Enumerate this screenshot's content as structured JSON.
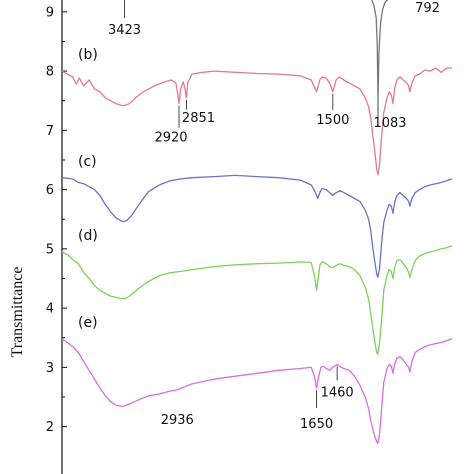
{
  "chart_data": {
    "type": "line",
    "title": "",
    "xlabel": "",
    "ylabel": "Transmittance",
    "ylim": [
      1.2,
      9.2
    ],
    "xlim": [
      4000,
      400
    ],
    "x_reversed": true,
    "y_ticks": [
      "2",
      "3",
      "4",
      "5",
      "6",
      "7",
      "8",
      "9"
    ],
    "grid": false,
    "series": [
      {
        "name": "",
        "panel_label": "",
        "color": "#777777",
        "x": [
          1200,
          1150,
          1120,
          1100,
          1090,
          1083,
          1075,
          1060,
          1040,
          1020,
          1000,
          980,
          960
        ],
        "y": [
          9.3,
          9.25,
          9.1,
          8.9,
          8.4,
          7.5,
          8.3,
          8.8,
          9.05,
          9.15,
          9.2,
          9.22,
          9.25
        ],
        "annotations": [
          {
            "text": "3423",
            "x": 3423,
            "y": 8.7
          },
          {
            "text": "792",
            "x": 792,
            "y": 9.1
          }
        ]
      },
      {
        "name": "",
        "panel_label": "(b)",
        "color": "#e07a8f",
        "x": [
          4000,
          3950,
          3900,
          3870,
          3840,
          3800,
          3750,
          3700,
          3650,
          3600,
          3550,
          3500,
          3450,
          3423,
          3380,
          3320,
          3250,
          3150,
          3050,
          2990,
          2950,
          2935,
          2920,
          2905,
          2880,
          2865,
          2851,
          2840,
          2800,
          2700,
          2600,
          2400,
          2200,
          2000,
          1800,
          1700,
          1650,
          1620,
          1600,
          1560,
          1530,
          1500,
          1470,
          1440,
          1400,
          1350,
          1300,
          1250,
          1200,
          1170,
          1150,
          1130,
          1110,
          1095,
          1083,
          1070,
          1050,
          1030,
          1000,
          980,
          960,
          945,
          930,
          910,
          880,
          850,
          820,
          800,
          790,
          770,
          740,
          700,
          650,
          600,
          550,
          500,
          450,
          400
        ],
        "y": [
          8.0,
          7.95,
          7.9,
          7.78,
          7.88,
          7.75,
          7.85,
          7.7,
          7.65,
          7.55,
          7.5,
          7.45,
          7.42,
          7.42,
          7.45,
          7.55,
          7.65,
          7.75,
          7.82,
          7.85,
          7.8,
          7.65,
          7.45,
          7.7,
          7.82,
          7.7,
          7.55,
          7.8,
          7.95,
          7.98,
          8.0,
          7.98,
          7.96,
          7.95,
          7.92,
          7.85,
          7.65,
          7.85,
          7.9,
          7.88,
          7.8,
          7.65,
          7.85,
          7.9,
          7.85,
          7.8,
          7.75,
          7.7,
          7.55,
          7.4,
          7.2,
          6.9,
          6.6,
          6.35,
          6.25,
          6.4,
          6.9,
          7.3,
          7.55,
          7.65,
          7.6,
          7.45,
          7.7,
          7.85,
          7.9,
          7.85,
          7.8,
          7.75,
          7.65,
          7.8,
          7.92,
          7.95,
          8.02,
          8.0,
          8.05,
          7.98,
          8.05,
          8.05
        ],
        "annotations": [
          {
            "text": "2920",
            "x": 2920,
            "y": 7.45
          },
          {
            "text": "2851",
            "x": 2851,
            "y": 7.55
          },
          {
            "text": "1500",
            "x": 1500,
            "y": 7.65
          },
          {
            "text": "1083",
            "x": 1083,
            "y": 6.25
          }
        ]
      },
      {
        "name": "",
        "panel_label": "(c)",
        "color": "#6b73c7",
        "x": [
          4000,
          3900,
          3850,
          3800,
          3750,
          3700,
          3650,
          3600,
          3550,
          3500,
          3450,
          3430,
          3400,
          3350,
          3300,
          3250,
          3200,
          3100,
          3000,
          2900,
          2800,
          2600,
          2400,
          2200,
          2000,
          1800,
          1700,
          1660,
          1640,
          1620,
          1600,
          1560,
          1530,
          1500,
          1470,
          1430,
          1400,
          1350,
          1300,
          1250,
          1200,
          1170,
          1150,
          1130,
          1110,
          1095,
          1085,
          1070,
          1050,
          1030,
          1000,
          980,
          960,
          945,
          930,
          910,
          880,
          850,
          820,
          800,
          790,
          770,
          740,
          700,
          650,
          600,
          550,
          500,
          450,
          400
        ],
        "y": [
          6.2,
          6.18,
          6.12,
          6.1,
          6.05,
          6.0,
          5.9,
          5.75,
          5.62,
          5.52,
          5.47,
          5.46,
          5.48,
          5.58,
          5.72,
          5.85,
          5.97,
          6.08,
          6.15,
          6.18,
          6.2,
          6.22,
          6.24,
          6.22,
          6.2,
          6.16,
          6.08,
          5.95,
          5.85,
          5.95,
          6.02,
          6.0,
          5.95,
          5.9,
          5.95,
          5.98,
          5.95,
          5.9,
          5.85,
          5.8,
          5.65,
          5.5,
          5.3,
          5.0,
          4.75,
          4.58,
          4.52,
          4.65,
          5.1,
          5.45,
          5.65,
          5.75,
          5.72,
          5.6,
          5.78,
          5.9,
          5.95,
          5.9,
          5.85,
          5.8,
          5.72,
          5.85,
          5.95,
          6.0,
          6.05,
          6.08,
          6.1,
          6.12,
          6.15,
          6.18
        ],
        "annotations": []
      },
      {
        "name": "",
        "panel_label": "(d)",
        "color": "#7ad25a",
        "x": [
          4000,
          3950,
          3900,
          3850,
          3800,
          3750,
          3700,
          3650,
          3600,
          3550,
          3500,
          3450,
          3420,
          3380,
          3330,
          3280,
          3200,
          3100,
          3000,
          2900,
          2800,
          2600,
          2400,
          2200,
          2000,
          1800,
          1700,
          1670,
          1650,
          1635,
          1620,
          1600,
          1560,
          1530,
          1500,
          1470,
          1430,
          1400,
          1350,
          1300,
          1250,
          1200,
          1170,
          1150,
          1130,
          1110,
          1095,
          1085,
          1070,
          1050,
          1030,
          1000,
          980,
          960,
          945,
          930,
          910,
          880,
          850,
          820,
          800,
          790,
          770,
          740,
          700,
          650,
          600,
          550,
          500,
          450,
          400
        ],
        "y": [
          4.95,
          4.9,
          4.82,
          4.75,
          4.6,
          4.5,
          4.38,
          4.3,
          4.25,
          4.2,
          4.18,
          4.16,
          4.16,
          4.2,
          4.27,
          4.35,
          4.45,
          4.55,
          4.6,
          4.62,
          4.65,
          4.7,
          4.73,
          4.75,
          4.76,
          4.78,
          4.77,
          4.55,
          4.3,
          4.5,
          4.72,
          4.78,
          4.75,
          4.7,
          4.68,
          4.72,
          4.75,
          4.72,
          4.7,
          4.65,
          4.55,
          4.35,
          4.15,
          3.9,
          3.65,
          3.4,
          3.25,
          3.22,
          3.4,
          3.8,
          4.3,
          4.55,
          4.65,
          4.62,
          4.5,
          4.68,
          4.8,
          4.82,
          4.75,
          4.68,
          4.6,
          4.52,
          4.65,
          4.8,
          4.88,
          4.92,
          4.95,
          4.97,
          5.0,
          5.02,
          5.05
        ],
        "annotations": []
      },
      {
        "name": "",
        "panel_label": "(e)",
        "color": "#d66fe0",
        "x": [
          4000,
          3950,
          3900,
          3850,
          3800,
          3750,
          3700,
          3650,
          3600,
          3550,
          3500,
          3450,
          3420,
          3380,
          3330,
          3280,
          3200,
          3100,
          3000,
          2936,
          2900,
          2800,
          2600,
          2400,
          2200,
          2000,
          1800,
          1700,
          1670,
          1650,
          1630,
          1610,
          1590,
          1560,
          1530,
          1500,
          1460,
          1440,
          1400,
          1350,
          1300,
          1250,
          1200,
          1170,
          1150,
          1130,
          1110,
          1095,
          1085,
          1070,
          1050,
          1030,
          1000,
          980,
          960,
          945,
          930,
          910,
          880,
          850,
          820,
          800,
          790,
          770,
          740,
          700,
          650,
          600,
          550,
          500,
          450,
          400
        ],
        "y": [
          3.48,
          3.42,
          3.35,
          3.25,
          3.1,
          2.95,
          2.8,
          2.65,
          2.52,
          2.42,
          2.36,
          2.34,
          2.35,
          2.38,
          2.42,
          2.46,
          2.52,
          2.55,
          2.6,
          2.62,
          2.65,
          2.72,
          2.8,
          2.85,
          2.9,
          2.95,
          2.98,
          3.0,
          2.85,
          2.65,
          2.85,
          3.0,
          3.02,
          2.98,
          2.95,
          3.0,
          3.05,
          3.02,
          2.98,
          2.95,
          2.85,
          2.7,
          2.5,
          2.3,
          2.1,
          1.95,
          1.82,
          1.75,
          1.72,
          1.85,
          2.3,
          2.75,
          2.98,
          3.05,
          3.02,
          2.9,
          3.05,
          3.15,
          3.18,
          3.12,
          3.05,
          3.0,
          2.92,
          3.1,
          3.25,
          3.3,
          3.35,
          3.38,
          3.4,
          3.42,
          3.45,
          3.48
        ],
        "annotations": [
          {
            "text": "2936",
            "x": 2936,
            "y": 2.62
          },
          {
            "text": "1650",
            "x": 1650,
            "y": 2.65
          },
          {
            "text": "1460",
            "x": 1460,
            "y": 3.05
          }
        ]
      }
    ]
  }
}
